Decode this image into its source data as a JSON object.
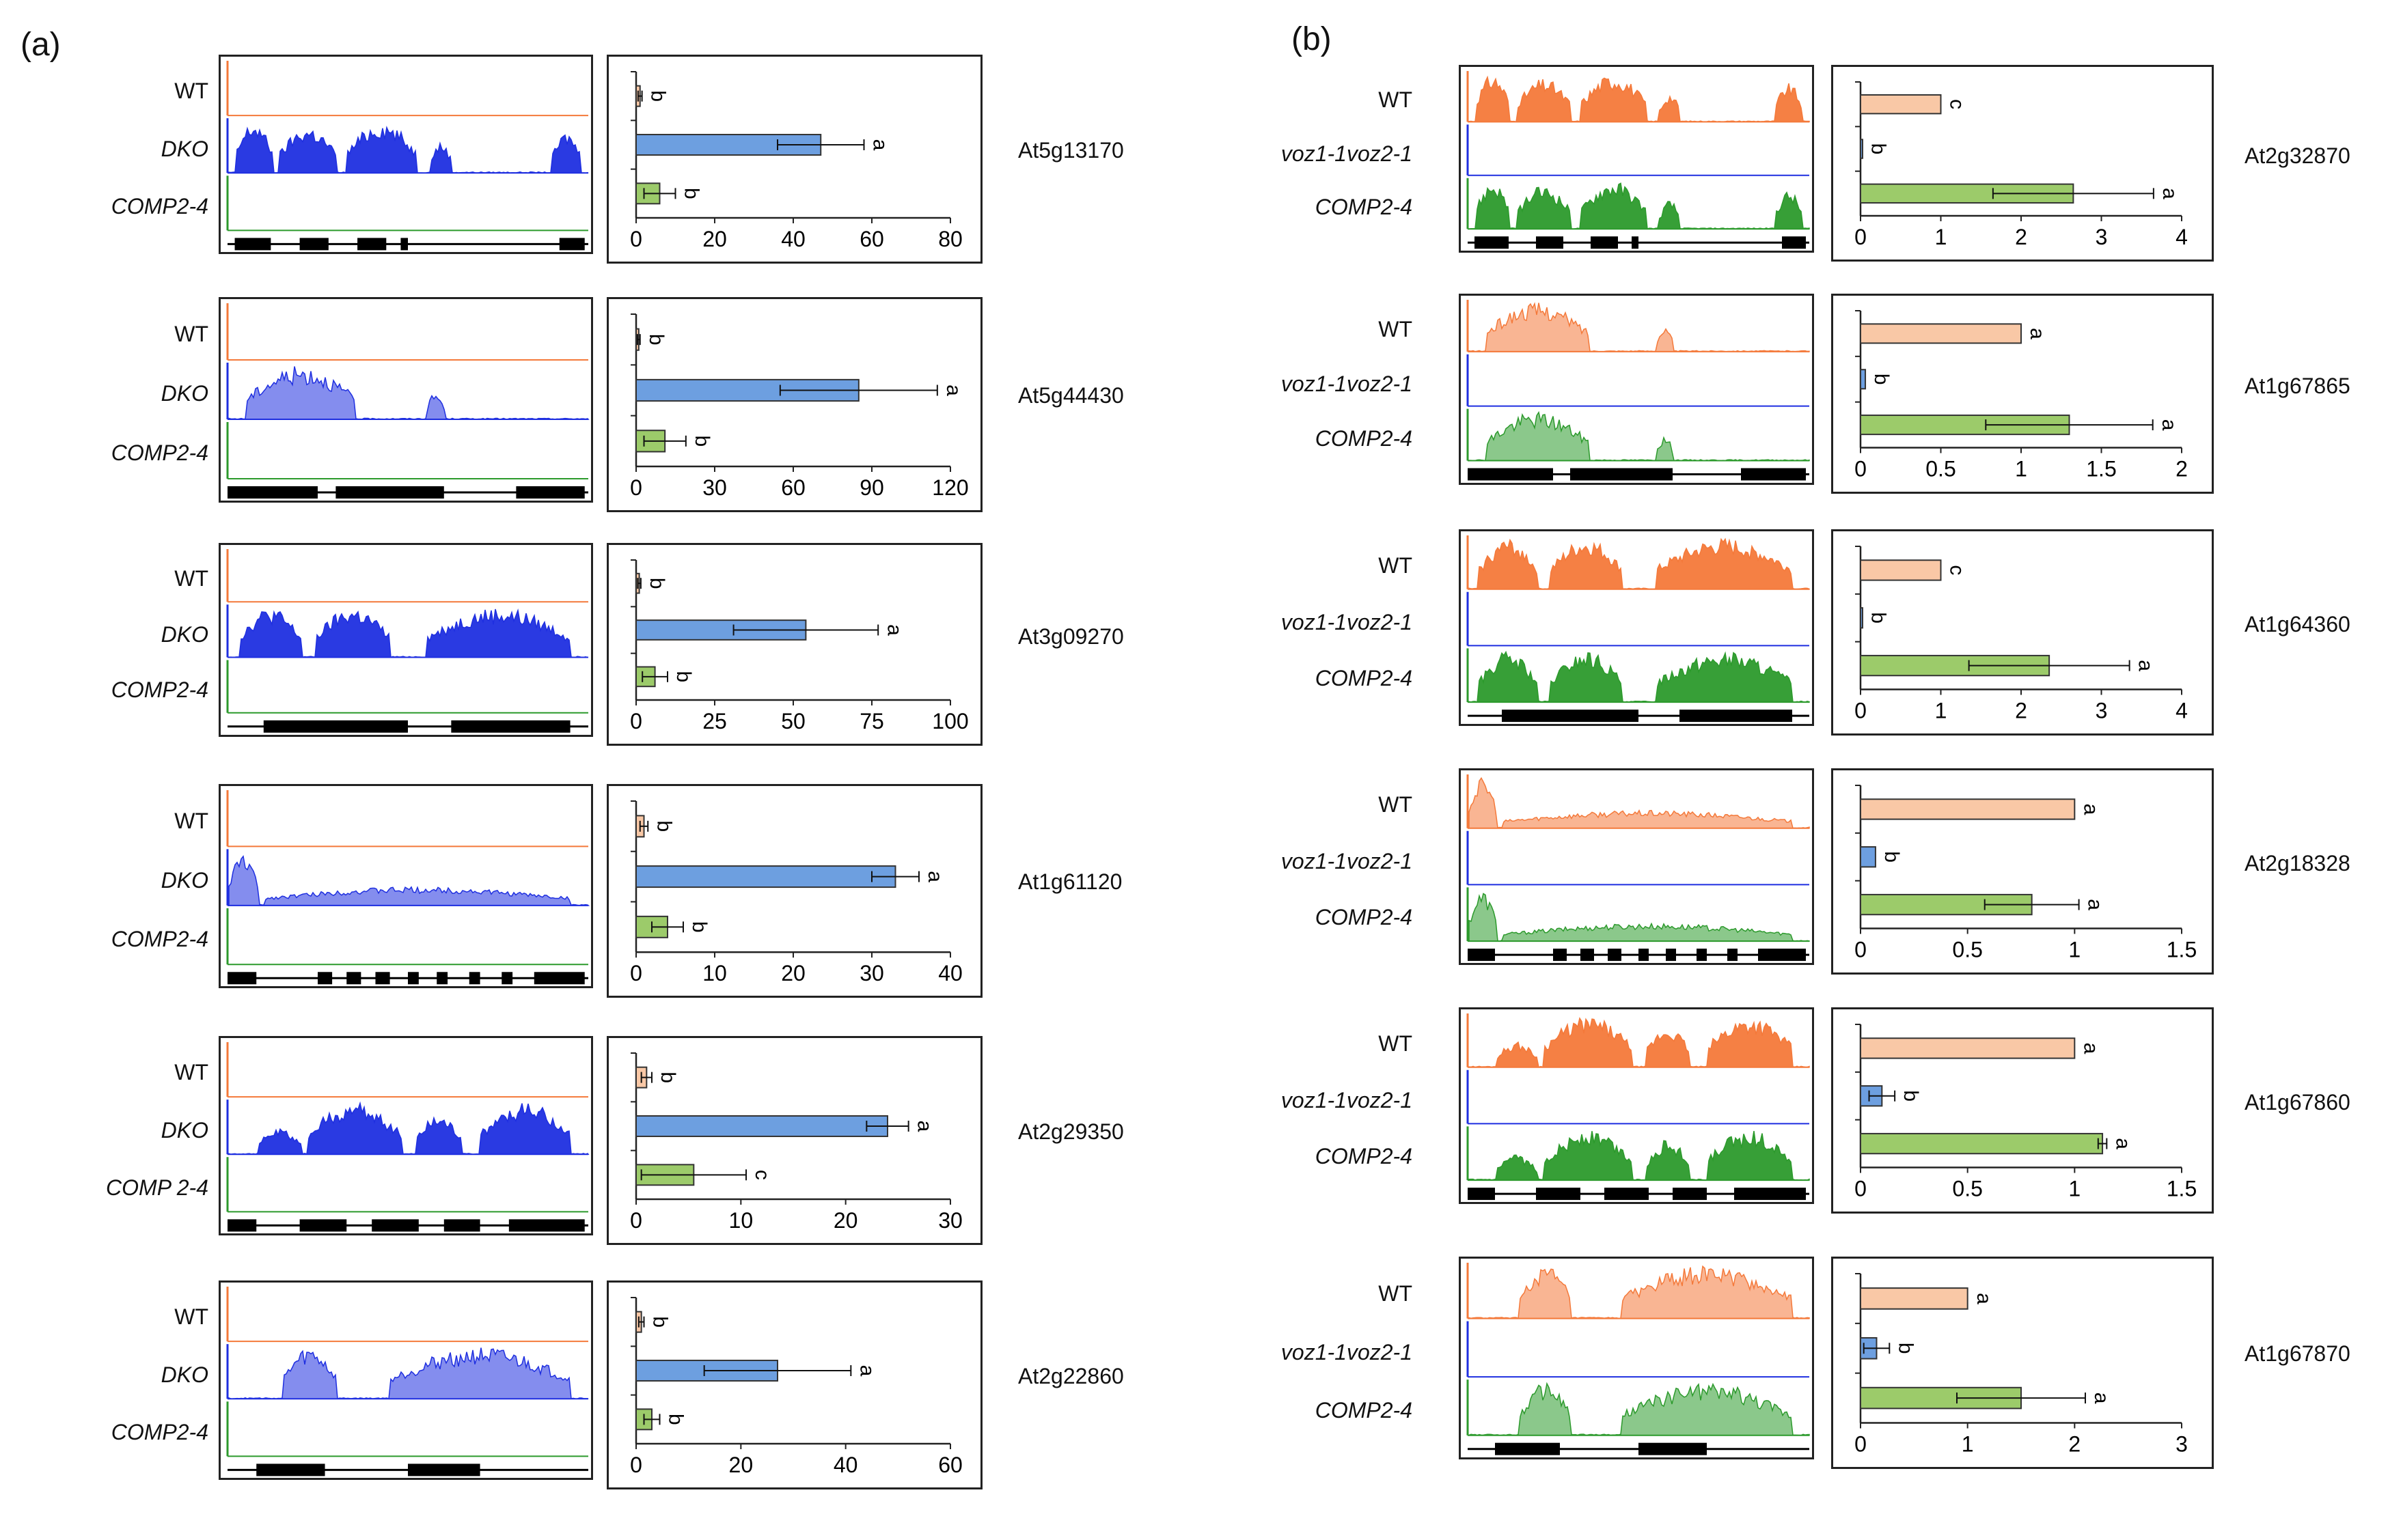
{
  "panel_labels": {
    "a": "(a)",
    "b": "(b)"
  },
  "colors": {
    "WT_track": "#f4793a",
    "WT_bar": "#f9c8a6",
    "mut_track": "#1f2fe0",
    "mut_bar": "#6d9fe0",
    "COMP_track": "#2c9a2c",
    "COMP_bar": "#9ccb6a",
    "gene_model": "#000000"
  },
  "chart_data": [
    {
      "type": "bar",
      "panel": "a",
      "gene": "At5g13170",
      "genotype_labels": [
        "WT",
        "DKO",
        "COMP2-4"
      ],
      "categories": [
        "WT",
        "DKO",
        "COMP2-4"
      ],
      "values": [
        1,
        47,
        6
      ],
      "errors": [
        0.5,
        11,
        4
      ],
      "letters": [
        "b",
        "a",
        "b"
      ],
      "xlim": [
        0,
        80
      ],
      "xticks": [
        "0",
        "20",
        "40",
        "60",
        "80"
      ]
    },
    {
      "type": "bar",
      "panel": "a",
      "gene": "At5g44430",
      "genotype_labels": [
        "WT",
        "DKO",
        "COMP2-4"
      ],
      "categories": [
        "WT",
        "DKO",
        "COMP2-4"
      ],
      "values": [
        1,
        85,
        11
      ],
      "errors": [
        0.5,
        30,
        8
      ],
      "letters": [
        "b",
        "a",
        "b"
      ],
      "xlim": [
        0,
        120
      ],
      "xticks": [
        "0",
        "30",
        "60",
        "90",
        "120"
      ]
    },
    {
      "type": "bar",
      "panel": "a",
      "gene": "At3g09270",
      "genotype_labels": [
        "WT",
        "DKO",
        "COMP2-4"
      ],
      "categories": [
        "WT",
        "DKO",
        "COMP2-4"
      ],
      "values": [
        1,
        54,
        6
      ],
      "errors": [
        0.5,
        23,
        4
      ],
      "letters": [
        "b",
        "a",
        "b"
      ],
      "xlim": [
        0,
        100
      ],
      "xticks": [
        "0",
        "25",
        "50",
        "75",
        "100"
      ]
    },
    {
      "type": "bar",
      "panel": "a",
      "gene": "At1g61120",
      "genotype_labels": [
        "WT",
        "DKO",
        "COMP2-4"
      ],
      "categories": [
        "WT",
        "DKO",
        "COMP2-4"
      ],
      "values": [
        1,
        33,
        4
      ],
      "errors": [
        0.5,
        3,
        2
      ],
      "letters": [
        "b",
        "a",
        "b"
      ],
      "xlim": [
        0,
        40
      ],
      "xticks": [
        "0",
        "10",
        "20",
        "30",
        "40"
      ]
    },
    {
      "type": "bar",
      "panel": "a",
      "gene": "At2g29350",
      "genotype_labels": [
        "WT",
        "DKO",
        "COMP 2-4"
      ],
      "categories": [
        "WT",
        "DKO",
        "COMP 2-4"
      ],
      "values": [
        1,
        24,
        5.5
      ],
      "errors": [
        0.5,
        2,
        5
      ],
      "letters": [
        "b",
        "a",
        "c"
      ],
      "xlim": [
        0,
        30
      ],
      "xticks": [
        "0",
        "10",
        "20",
        "30"
      ]
    },
    {
      "type": "bar",
      "panel": "a",
      "gene": "At2g22860",
      "genotype_labels": [
        "WT",
        "DKO",
        "COMP2-4"
      ],
      "categories": [
        "WT",
        "DKO",
        "COMP2-4"
      ],
      "values": [
        1,
        27,
        3
      ],
      "errors": [
        0.5,
        14,
        1.5
      ],
      "letters": [
        "b",
        "a",
        "b"
      ],
      "xlim": [
        0,
        60
      ],
      "xticks": [
        "0",
        "20",
        "40",
        "60"
      ]
    },
    {
      "type": "bar",
      "panel": "b",
      "gene": "At2g32870",
      "genotype_labels": [
        "WT",
        "voz1-1voz2-1",
        "COMP2-4"
      ],
      "categories": [
        "WT",
        "voz1-1voz2-1",
        "COMP2-4"
      ],
      "values": [
        1,
        0.02,
        2.65
      ],
      "errors": [
        0,
        0,
        1
      ],
      "letters": [
        "c",
        "b",
        "a"
      ],
      "xlim": [
        0,
        4
      ],
      "xticks": [
        "0",
        "1",
        "2",
        "3",
        "4"
      ]
    },
    {
      "type": "bar",
      "panel": "b",
      "gene": "At1g67865",
      "genotype_labels": [
        "WT",
        "voz1-1voz2-1",
        "COMP2-4"
      ],
      "categories": [
        "WT",
        "voz1-1voz2-1",
        "COMP2-4"
      ],
      "values": [
        1,
        0.03,
        1.3
      ],
      "errors": [
        0,
        0,
        0.52
      ],
      "letters": [
        "a",
        "b",
        "a"
      ],
      "xlim": [
        0,
        2
      ],
      "xticks": [
        "0",
        "0.5",
        "1",
        "1.5",
        "2"
      ]
    },
    {
      "type": "bar",
      "panel": "b",
      "gene": "At1g64360",
      "genotype_labels": [
        "WT",
        "voz1-1voz2-1",
        "COMP2-4"
      ],
      "categories": [
        "WT",
        "voz1-1voz2-1",
        "COMP2-4"
      ],
      "values": [
        1,
        0.02,
        2.35
      ],
      "errors": [
        0,
        0,
        1
      ],
      "letters": [
        "c",
        "b",
        "a"
      ],
      "xlim": [
        0,
        4
      ],
      "xticks": [
        "0",
        "1",
        "2",
        "3",
        "4"
      ]
    },
    {
      "type": "bar",
      "panel": "b",
      "gene": "At2g18328",
      "genotype_labels": [
        "WT",
        "voz1-1voz2-1",
        "COMP2-4"
      ],
      "categories": [
        "WT",
        "voz1-1voz2-1",
        "COMP2-4"
      ],
      "values": [
        1,
        0.07,
        0.8
      ],
      "errors": [
        0,
        0,
        0.22
      ],
      "letters": [
        "a",
        "b",
        "a"
      ],
      "xlim": [
        0,
        1.5
      ],
      "xticks": [
        "0",
        "0.5",
        "1",
        "1.5"
      ]
    },
    {
      "type": "bar",
      "panel": "b",
      "gene": "At1g67860",
      "genotype_labels": [
        "WT",
        "voz1-1voz2-1",
        "COMP2-4"
      ],
      "categories": [
        "WT",
        "voz1-1voz2-1",
        "COMP2-4"
      ],
      "values": [
        1,
        0.1,
        1.13
      ],
      "errors": [
        0,
        0.06,
        0.02
      ],
      "letters": [
        "a",
        "b",
        "a"
      ],
      "xlim": [
        0,
        1.5
      ],
      "xticks": [
        "0",
        "0.5",
        "1",
        "1.5"
      ]
    },
    {
      "type": "bar",
      "panel": "b",
      "gene": "At1g67870",
      "genotype_labels": [
        "WT",
        "voz1-1voz2-1",
        "COMP2-4"
      ],
      "categories": [
        "WT",
        "voz1-1voz2-1",
        "COMP2-4"
      ],
      "values": [
        1,
        0.15,
        1.5
      ],
      "errors": [
        0,
        0.12,
        0.6
      ],
      "letters": [
        "a",
        "b",
        "a"
      ],
      "xlim": [
        0,
        3
      ],
      "xticks": [
        "0",
        "1",
        "2",
        "3"
      ]
    }
  ]
}
